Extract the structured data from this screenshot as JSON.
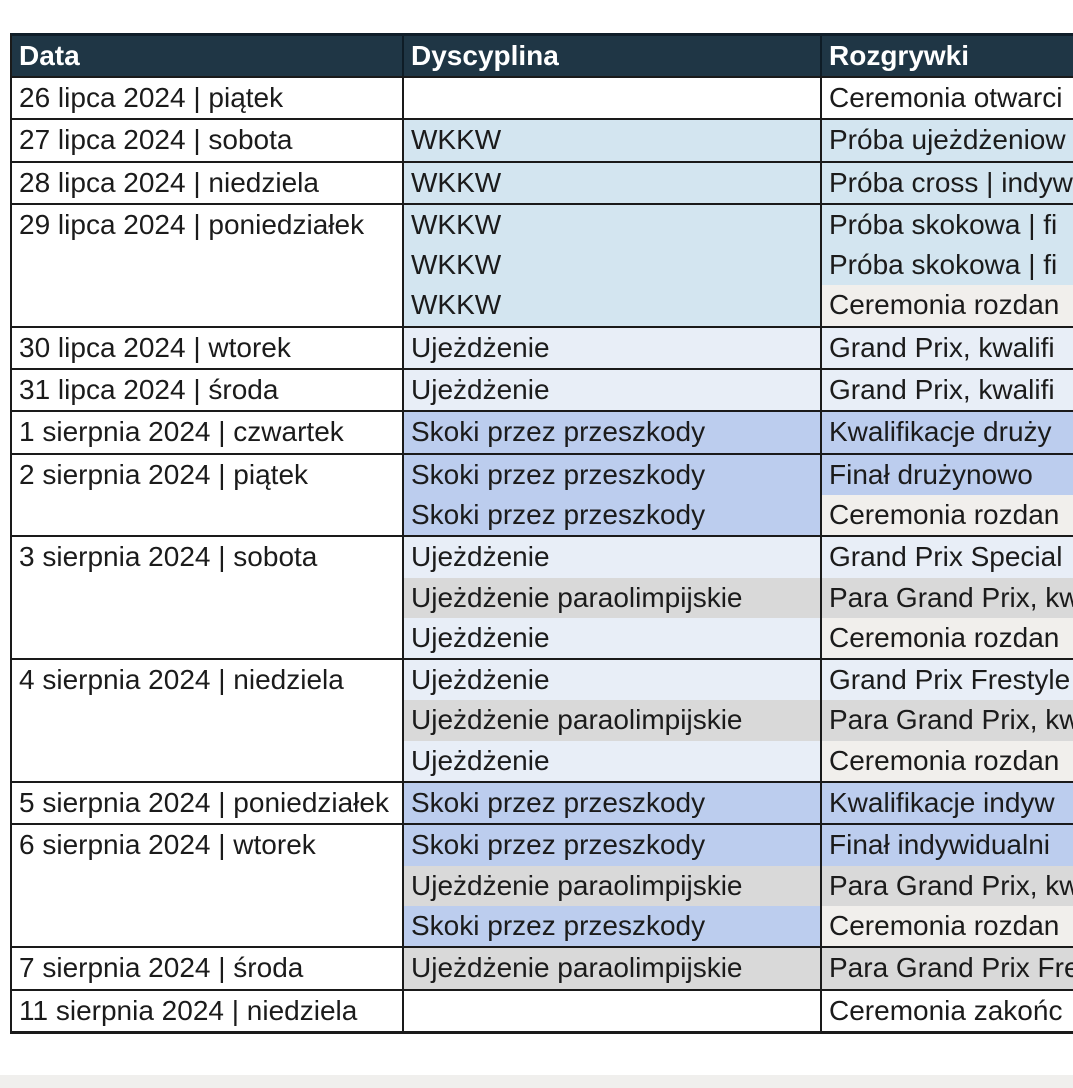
{
  "table": {
    "header_bg": "#1f3645",
    "header_text_color": "#ffffff",
    "colors": {
      "white": "#ffffff",
      "wkkw_blue": "#d3e5f0",
      "pale_blue": "#e8eef7",
      "periwinkle": "#bccdee",
      "gray": "#d9d9d9",
      "off_white": "#f1efec"
    },
    "columns": [
      {
        "label": "Data"
      },
      {
        "label": "Dyscyplina"
      },
      {
        "label": "Rozgrywki"
      }
    ],
    "groups": [
      {
        "date": "26 lipca 2024 | piątek",
        "rows": [
          {
            "discipline": "",
            "discipline_color": "white",
            "event": "Ceremonia otwarci",
            "event_color": "white"
          }
        ]
      },
      {
        "date": "27 lipca 2024 | sobota",
        "rows": [
          {
            "discipline": "WKKW",
            "discipline_color": "wkkw_blue",
            "event": "Próba ujeżdżeniow",
            "event_color": "wkkw_blue"
          }
        ]
      },
      {
        "date": "28 lipca 2024 | niedziela",
        "rows": [
          {
            "discipline": "WKKW",
            "discipline_color": "wkkw_blue",
            "event": "Próba cross | indyw",
            "event_color": "wkkw_blue"
          }
        ]
      },
      {
        "date": "29 lipca 2024 | poniedziałek",
        "rows": [
          {
            "discipline": "WKKW",
            "discipline_color": "wkkw_blue",
            "event": "Próba skokowa | fi",
            "event_color": "wkkw_blue"
          },
          {
            "discipline": "WKKW",
            "discipline_color": "wkkw_blue",
            "event": "Próba skokowa | fi",
            "event_color": "wkkw_blue"
          },
          {
            "discipline": "WKKW",
            "discipline_color": "wkkw_blue",
            "event": "Ceremonia rozdan",
            "event_color": "off_white"
          }
        ]
      },
      {
        "date": "30 lipca 2024 | wtorek",
        "rows": [
          {
            "discipline": "Ujeżdżenie",
            "discipline_color": "pale_blue",
            "event": "Grand Prix, kwalifi",
            "event_color": "pale_blue"
          }
        ]
      },
      {
        "date": "31 lipca 2024 | środa",
        "rows": [
          {
            "discipline": "Ujeżdżenie",
            "discipline_color": "pale_blue",
            "event": "Grand Prix, kwalifi",
            "event_color": "pale_blue"
          }
        ]
      },
      {
        "date": "1 sierpnia 2024 | czwartek",
        "rows": [
          {
            "discipline": "Skoki przez przeszkody",
            "discipline_color": "periwinkle",
            "event": "Kwalifikacje druży",
            "event_color": "periwinkle"
          }
        ]
      },
      {
        "date": "2 sierpnia 2024 | piątek",
        "rows": [
          {
            "discipline": "Skoki przez przeszkody",
            "discipline_color": "periwinkle",
            "event": "Finał drużynowo",
            "event_color": "periwinkle"
          },
          {
            "discipline": "Skoki przez przeszkody",
            "discipline_color": "periwinkle",
            "event": "Ceremonia rozdan",
            "event_color": "off_white"
          }
        ]
      },
      {
        "date": "3 sierpnia 2024 | sobota",
        "rows": [
          {
            "discipline": "Ujeżdżenie",
            "discipline_color": "pale_blue",
            "event": "Grand Prix Special",
            "event_color": "pale_blue"
          },
          {
            "discipline": "Ujeżdżenie paraolimpijskie",
            "discipline_color": "gray",
            "event": "Para Grand Prix, kw",
            "event_color": "gray"
          },
          {
            "discipline": "Ujeżdżenie",
            "discipline_color": "pale_blue",
            "event": "Ceremonia rozdan",
            "event_color": "off_white"
          }
        ]
      },
      {
        "date": "4 sierpnia 2024 | niedziela",
        "rows": [
          {
            "discipline": "Ujeżdżenie",
            "discipline_color": "pale_blue",
            "event": "Grand Prix Frestyle",
            "event_color": "pale_blue"
          },
          {
            "discipline": "Ujeżdżenie paraolimpijskie",
            "discipline_color": "gray",
            "event": "Para Grand Prix, kw",
            "event_color": "gray"
          },
          {
            "discipline": "Ujeżdżenie",
            "discipline_color": "pale_blue",
            "event": "Ceremonia rozdan",
            "event_color": "off_white"
          }
        ]
      },
      {
        "date": "5 sierpnia 2024 | poniedziałek",
        "rows": [
          {
            "discipline": "Skoki przez przeszkody",
            "discipline_color": "periwinkle",
            "event": "Kwalifikacje indyw",
            "event_color": "periwinkle"
          }
        ]
      },
      {
        "date": "6 sierpnia 2024 | wtorek",
        "rows": [
          {
            "discipline": "Skoki przez przeszkody",
            "discipline_color": "periwinkle",
            "event": "Finał indywidualni",
            "event_color": "periwinkle"
          },
          {
            "discipline": "Ujeżdżenie paraolimpijskie",
            "discipline_color": "gray",
            "event": "Para Grand Prix, kw",
            "event_color": "gray"
          },
          {
            "discipline": "Skoki przez przeszkody",
            "discipline_color": "periwinkle",
            "event": "Ceremonia rozdan",
            "event_color": "off_white"
          }
        ]
      },
      {
        "date": "7 sierpnia 2024 | środa",
        "rows": [
          {
            "discipline": "Ujeżdżenie paraolimpijskie",
            "discipline_color": "gray",
            "event": "Para Grand Prix Fre",
            "event_color": "gray"
          }
        ]
      },
      {
        "date": "11 sierpnia 2024 | niedziela",
        "rows": [
          {
            "discipline": "",
            "discipline_color": "white",
            "event": "Ceremonia zakońc",
            "event_color": "white"
          }
        ]
      }
    ]
  }
}
